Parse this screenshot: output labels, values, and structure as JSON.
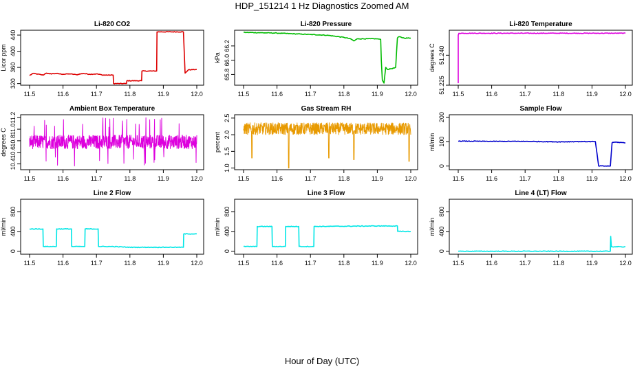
{
  "page": {
    "title": "HDP_151214  1 Hz Diagnostics Zoomed AM",
    "xlabel": "Hour of Day (UTC)"
  },
  "colors": {
    "red": "#dd0000",
    "green": "#00bb00",
    "magenta": "#dd00dd",
    "orange": "#e89a00",
    "blue": "#0000cc",
    "cyan": "#00e6e6",
    "axis": "#000000"
  },
  "chart_data": [
    {
      "id": "co2",
      "type": "line",
      "title": "Li-820 CO2",
      "ylabel": "Licor ppm",
      "xlim": [
        11.5,
        12.0
      ],
      "ylim": [
        316,
        452
      ],
      "xticks": [
        "11.5",
        "11.6",
        "11.7",
        "11.8",
        "11.9",
        "12.0"
      ],
      "yticks": [
        {
          "v": 320,
          "label": "320"
        },
        {
          "v": 360,
          "label": "360"
        },
        {
          "v": 400,
          "label": "400"
        },
        {
          "v": 440,
          "label": "440"
        }
      ],
      "color": "red",
      "x": [
        11.5,
        11.51,
        11.52,
        11.54,
        11.55,
        11.56,
        11.58,
        11.6,
        11.62,
        11.64,
        11.66,
        11.68,
        11.7,
        11.72,
        11.75,
        11.751,
        11.79,
        11.791,
        11.835,
        11.836,
        11.88,
        11.881,
        11.96,
        11.965,
        11.975,
        12.0
      ],
      "y": [
        340,
        345,
        344,
        341,
        346,
        344,
        345,
        343,
        344,
        342,
        345,
        343,
        344,
        341,
        341,
        320,
        320,
        327,
        327,
        351,
        351,
        448,
        448,
        346,
        354,
        355
      ]
    },
    {
      "id": "pressure",
      "type": "line",
      "title": "Li-820 Pressure",
      "ylabel": "kPa",
      "xlim": [
        11.5,
        12.0
      ],
      "ylim": [
        65.65,
        66.42
      ],
      "xticks": [
        "11.5",
        "11.6",
        "11.7",
        "11.8",
        "11.9",
        "12.0"
      ],
      "yticks": [
        {
          "v": 65.8,
          "label": "65.8"
        },
        {
          "v": 66.0,
          "label": "66.0"
        },
        {
          "v": 66.2,
          "label": "66.2"
        }
      ],
      "color": "green",
      "x": [
        11.5,
        11.55,
        11.6,
        11.7,
        11.75,
        11.8,
        11.82,
        11.83,
        11.84,
        11.9,
        11.91,
        11.912,
        11.915,
        11.92,
        11.925,
        11.93,
        11.95,
        11.955,
        11.96,
        11.965,
        11.98,
        12.0
      ],
      "y": [
        66.39,
        66.385,
        66.38,
        66.36,
        66.35,
        66.32,
        66.3,
        66.27,
        66.3,
        66.3,
        66.29,
        66.0,
        65.72,
        65.68,
        65.9,
        65.87,
        65.89,
        65.9,
        66.31,
        66.33,
        66.31,
        66.31
      ]
    },
    {
      "id": "temperature",
      "type": "line",
      "title": "Li-820 Temperature",
      "ylabel": "degrees C",
      "xlim": [
        11.5,
        12.0
      ],
      "ylim": [
        51.225,
        51.2525
      ],
      "xticks": [
        "11.5",
        "11.6",
        "11.7",
        "11.8",
        "11.9",
        "12.0"
      ],
      "yticks": [
        {
          "v": 51.225,
          "label": "51.225"
        },
        {
          "v": 51.24,
          "label": "51.240"
        }
      ],
      "color": "magenta",
      "x": [
        11.5,
        11.5,
        11.502,
        12.0
      ],
      "y": [
        51.226,
        51.25,
        51.251,
        51.251
      ]
    },
    {
      "id": "boxtemp",
      "type": "line",
      "title": "Ambient Box Temperature",
      "ylabel": "degrees C",
      "xlim": [
        11.5,
        12.0
      ],
      "ylim": [
        10.3,
        11.25
      ],
      "xticks": [
        "11.5",
        "11.6",
        "11.7",
        "11.8",
        "11.9",
        "12.0"
      ],
      "yticks": [
        {
          "v": 10.4,
          "label": "10.4"
        },
        {
          "v": 10.6,
          "label": "10.6"
        },
        {
          "v": 10.8,
          "label": "10.8"
        },
        {
          "v": 11.0,
          "label": "11.0"
        },
        {
          "v": 11.2,
          "label": "11.2"
        }
      ],
      "color": "magenta",
      "noise": {
        "base": 10.78,
        "amp": 0.12,
        "spike": 0.42,
        "spikeEvery": 0.03
      }
    },
    {
      "id": "rh",
      "type": "line",
      "title": "Gas Stream RH",
      "ylabel": "percent",
      "xlim": [
        11.5,
        12.0
      ],
      "ylim": [
        0.95,
        2.6
      ],
      "xticks": [
        "11.5",
        "11.6",
        "11.7",
        "11.8",
        "11.9",
        "12.0"
      ],
      "yticks": [
        {
          "v": 1.0,
          "label": "1.0"
        },
        {
          "v": 1.5,
          "label": "1.5"
        },
        {
          "v": 2.0,
          "label": "2.0"
        },
        {
          "v": 2.5,
          "label": "2.5"
        }
      ],
      "color": "orange",
      "noise": {
        "base": 2.18,
        "amp": 0.18,
        "dips": [
          {
            "x": 11.525,
            "y": 1.3
          },
          {
            "x": 11.635,
            "y": 1.0
          },
          {
            "x": 11.755,
            "y": 1.3
          },
          {
            "x": 11.83,
            "y": 1.25
          },
          {
            "x": 11.995,
            "y": 1.2
          }
        ]
      }
    },
    {
      "id": "sampleflow",
      "type": "line",
      "title": "Sample Flow",
      "ylabel": "ml/min",
      "xlim": [
        11.5,
        12.0
      ],
      "ylim": [
        -15,
        210
      ],
      "xticks": [
        "11.5",
        "11.6",
        "11.7",
        "11.8",
        "11.9",
        "12.0"
      ],
      "yticks": [
        {
          "v": 0,
          "label": "0"
        },
        {
          "v": 100,
          "label": "100"
        },
        {
          "v": 200,
          "label": "200"
        }
      ],
      "color": "blue",
      "x": [
        11.5,
        11.6,
        11.7,
        11.8,
        11.85,
        11.91,
        11.92,
        11.955,
        11.96,
        11.97,
        12.0
      ],
      "y": [
        102,
        101,
        101,
        99,
        100,
        100,
        0,
        0,
        95,
        98,
        95
      ]
    },
    {
      "id": "line2",
      "type": "line",
      "title": "Line 2 Flow",
      "ylabel": "ml/min",
      "xlim": [
        11.5,
        12.0
      ],
      "ylim": [
        -60,
        1050
      ],
      "xticks": [
        "11.5",
        "11.6",
        "11.7",
        "11.8",
        "11.9",
        "12.0"
      ],
      "yticks": [
        {
          "v": 0,
          "label": "0"
        },
        {
          "v": 400,
          "label": "400"
        },
        {
          "v": 800,
          "label": "800"
        }
      ],
      "color": "cyan",
      "x": [
        11.5,
        11.54,
        11.541,
        11.58,
        11.581,
        11.625,
        11.626,
        11.665,
        11.666,
        11.705,
        11.706,
        11.75,
        11.8,
        11.96,
        11.961,
        12.0
      ],
      "y": [
        450,
        450,
        95,
        95,
        450,
        450,
        95,
        95,
        450,
        450,
        95,
        95,
        80,
        80,
        350,
        350
      ]
    },
    {
      "id": "line3",
      "type": "line",
      "title": "Line 3 Flow",
      "ylabel": "ml/min",
      "xlim": [
        11.5,
        12.0
      ],
      "ylim": [
        -60,
        1050
      ],
      "xticks": [
        "11.5",
        "11.6",
        "11.7",
        "11.8",
        "11.9",
        "12.0"
      ],
      "yticks": [
        {
          "v": 0,
          "label": "0"
        },
        {
          "v": 400,
          "label": "400"
        },
        {
          "v": 800,
          "label": "800"
        }
      ],
      "color": "cyan",
      "x": [
        11.5,
        11.54,
        11.541,
        11.585,
        11.586,
        11.625,
        11.626,
        11.665,
        11.666,
        11.71,
        11.711,
        11.9,
        11.96,
        11.961,
        12.0
      ],
      "y": [
        95,
        95,
        500,
        500,
        95,
        95,
        500,
        500,
        95,
        95,
        500,
        510,
        510,
        400,
        400
      ]
    },
    {
      "id": "line4",
      "type": "line",
      "title": "Line 4 (LT) Flow",
      "ylabel": "ml/min",
      "xlim": [
        11.5,
        12.0
      ],
      "ylim": [
        -60,
        1050
      ],
      "xticks": [
        "11.5",
        "11.6",
        "11.7",
        "11.8",
        "11.9",
        "12.0"
      ],
      "yticks": [
        {
          "v": 0,
          "label": "0"
        },
        {
          "v": 400,
          "label": "400"
        },
        {
          "v": 800,
          "label": "800"
        }
      ],
      "color": "cyan",
      "x": [
        11.5,
        11.955,
        11.956,
        11.958,
        11.96,
        12.0
      ],
      "y": [
        0,
        0,
        300,
        90,
        90,
        90
      ]
    }
  ]
}
